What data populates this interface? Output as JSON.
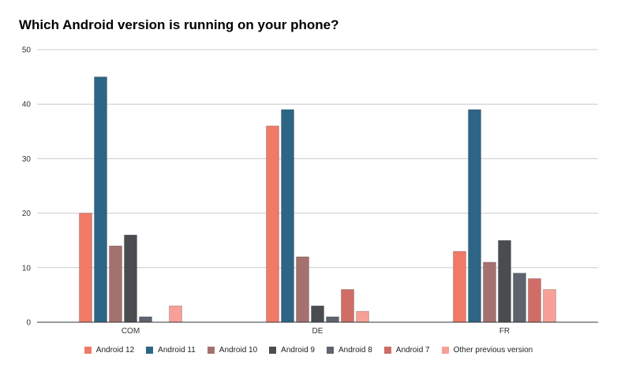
{
  "chart_data": {
    "type": "bar",
    "title": "Which Android version is running on your phone?",
    "xlabel": "",
    "ylabel": "",
    "ylim": [
      0,
      50
    ],
    "yticks": [
      0,
      10,
      20,
      30,
      40,
      50
    ],
    "grid": true,
    "legend_position": "bottom",
    "categories": [
      "COM",
      "DE",
      "FR"
    ],
    "series": [
      {
        "name": "Android 12",
        "color": "#f07a68",
        "values": [
          20,
          36,
          13
        ]
      },
      {
        "name": "Android 11",
        "color": "#2c6585",
        "values": [
          45,
          39,
          39
        ]
      },
      {
        "name": "Android 10",
        "color": "#a4716f",
        "values": [
          14,
          12,
          11
        ]
      },
      {
        "name": "Android 9",
        "color": "#4a4c50",
        "values": [
          16,
          3,
          15
        ]
      },
      {
        "name": "Android 8",
        "color": "#5d646d",
        "values": [
          1,
          1,
          9
        ]
      },
      {
        "name": "Android 7",
        "color": "#cf6d66",
        "values": [
          0,
          6,
          8
        ]
      },
      {
        "name": "Other previous version",
        "color": "#f6a097",
        "values": [
          3,
          2,
          6
        ]
      }
    ]
  }
}
